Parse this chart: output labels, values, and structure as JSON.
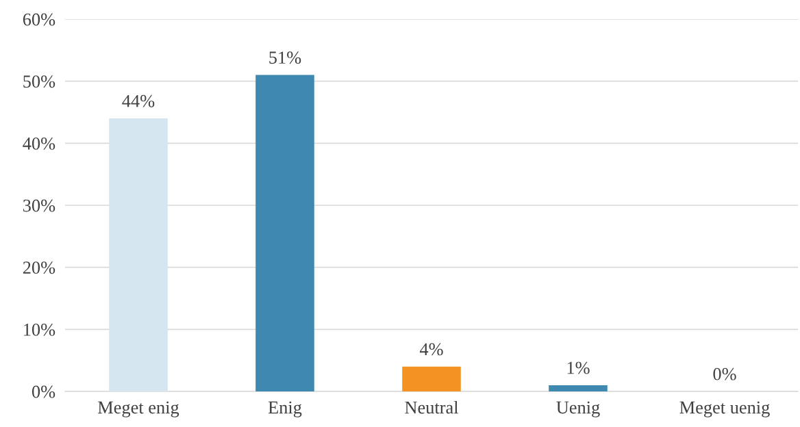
{
  "chart_data": {
    "type": "bar",
    "categories": [
      "Meget enig",
      "Enig",
      "Neutral",
      "Uenig",
      "Meget uenig"
    ],
    "values": [
      44,
      51,
      4,
      1,
      0
    ],
    "colors": [
      "#d6e6f0",
      "#3f88b0",
      "#f39321",
      "#3f88b0",
      "#3f88b0"
    ],
    "value_labels": [
      "44%",
      "51%",
      "4%",
      "1%",
      "0%"
    ],
    "ylim": [
      0,
      60
    ],
    "yticks": [
      {
        "value": 0,
        "label": "0%"
      },
      {
        "value": 10,
        "label": "10%"
      },
      {
        "value": 20,
        "label": "20%"
      },
      {
        "value": 30,
        "label": "30%"
      },
      {
        "value": 40,
        "label": "40%"
      },
      {
        "value": 50,
        "label": "50%"
      },
      {
        "value": 60,
        "label": "60%"
      }
    ],
    "grid": "y"
  }
}
